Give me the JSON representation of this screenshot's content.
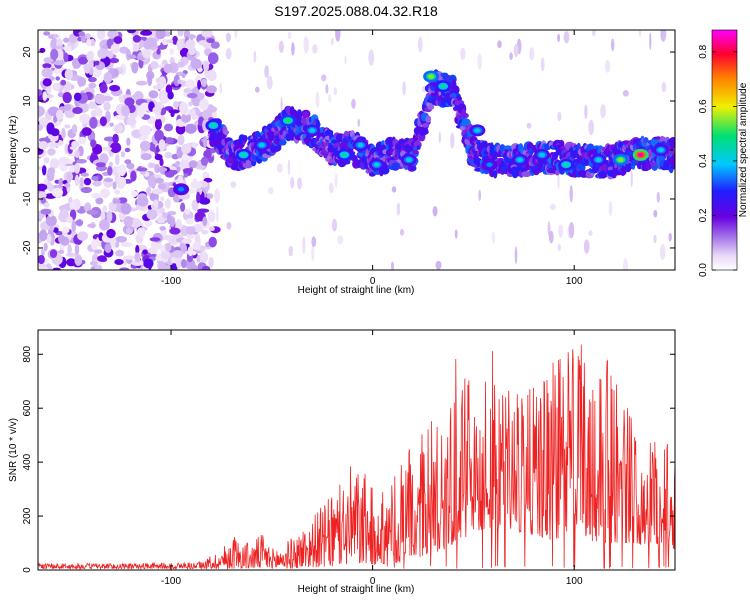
{
  "title": "S197.2025.088.04.32.R18",
  "colors": {
    "snr_line": "#ee2222",
    "colormap": [
      "#ffffff",
      "#e9d8f7",
      "#a070e8",
      "#6a00e0",
      "#2020ff",
      "#00c8ff",
      "#00e070",
      "#f0f000",
      "#ff8000",
      "#ff0030",
      "#ff00ff"
    ]
  },
  "chart_data": [
    {
      "type": "heatmap",
      "title": "",
      "xlabel": "Height of straight line (km)",
      "ylabel": "Frequency (Hz)",
      "xlim": [
        -166,
        150
      ],
      "ylim": [
        -24.5,
        24.5
      ],
      "xticks": [
        -100,
        0,
        100
      ],
      "xtick_labels": [
        "-100",
        "0",
        "100"
      ],
      "yticks": [
        -20,
        -10,
        0,
        10,
        20
      ],
      "ytick_labels": [
        "-20",
        "-10",
        "0",
        "10",
        "20"
      ],
      "colorbar": {
        "label": "Normalized spectral amplitude",
        "range": [
          0.0,
          0.88
        ],
        "ticks": [
          0.0,
          0.2,
          0.4,
          0.6,
          0.8
        ],
        "tick_labels": [
          "0.0",
          "0.2",
          "0.4",
          "0.6",
          "0.8"
        ]
      },
      "ridge": [
        {
          "x": -80,
          "y": 5
        },
        {
          "x": -70,
          "y": -1
        },
        {
          "x": -60,
          "y": 0
        },
        {
          "x": -50,
          "y": 2
        },
        {
          "x": -42,
          "y": 5.5
        },
        {
          "x": -30,
          "y": 4
        },
        {
          "x": -20,
          "y": 0
        },
        {
          "x": -10,
          "y": 0.5
        },
        {
          "x": 0,
          "y": -2
        },
        {
          "x": 10,
          "y": -1
        },
        {
          "x": 20,
          "y": -1
        },
        {
          "x": 30,
          "y": 13
        },
        {
          "x": 40,
          "y": 12
        },
        {
          "x": 50,
          "y": -1
        },
        {
          "x": 60,
          "y": -2
        },
        {
          "x": 70,
          "y": -2
        },
        {
          "x": 80,
          "y": -2
        },
        {
          "x": 90,
          "y": -1.5
        },
        {
          "x": 100,
          "y": -2
        },
        {
          "x": 110,
          "y": -2.5
        },
        {
          "x": 120,
          "y": -2
        },
        {
          "x": 130,
          "y": -1
        },
        {
          "x": 140,
          "y": -1
        },
        {
          "x": 150,
          "y": -1
        }
      ],
      "peaks": [
        {
          "x": -95,
          "y": -8,
          "z": 0.35
        },
        {
          "x": -79,
          "y": 5,
          "z": 0.45
        },
        {
          "x": -64,
          "y": -1,
          "z": 0.45
        },
        {
          "x": -55,
          "y": 1,
          "z": 0.4
        },
        {
          "x": -42,
          "y": 6,
          "z": 0.5
        },
        {
          "x": -30,
          "y": 4,
          "z": 0.4
        },
        {
          "x": -14,
          "y": -1,
          "z": 0.45
        },
        {
          "x": -6,
          "y": 1,
          "z": 0.4
        },
        {
          "x": 2,
          "y": -3,
          "z": 0.4
        },
        {
          "x": 18,
          "y": -2,
          "z": 0.4
        },
        {
          "x": 29,
          "y": 15,
          "z": 0.55
        },
        {
          "x": 35,
          "y": 13,
          "z": 0.45
        },
        {
          "x": 52,
          "y": 4,
          "z": 0.4
        },
        {
          "x": 58,
          "y": -3,
          "z": 0.35
        },
        {
          "x": 73,
          "y": -2,
          "z": 0.4
        },
        {
          "x": 84,
          "y": -1,
          "z": 0.4
        },
        {
          "x": 96,
          "y": -3,
          "z": 0.45
        },
        {
          "x": 112,
          "y": -2,
          "z": 0.4
        },
        {
          "x": 123,
          "y": -2,
          "z": 0.55
        },
        {
          "x": 133,
          "y": -1,
          "z": 0.85
        },
        {
          "x": 143,
          "y": 0,
          "z": 0.4
        }
      ]
    },
    {
      "type": "line",
      "title": "",
      "xlabel": "Height of straight line (km)",
      "ylabel": "SNR (10 * v/v)",
      "xlim": [
        -166,
        150
      ],
      "ylim": [
        0,
        890
      ],
      "xticks": [
        -100,
        0,
        100
      ],
      "xtick_labels": [
        "-100",
        "0",
        "100"
      ],
      "yticks": [
        0,
        200,
        400,
        600,
        800
      ],
      "ytick_labels": [
        "0",
        "200",
        "400",
        "600",
        "800"
      ],
      "series": [
        {
          "color": "#ee2222",
          "envelope_x": [
            -166,
            -120,
            -85,
            -75,
            -70,
            -60,
            -55,
            -50,
            -40,
            -30,
            -20,
            -10,
            0,
            10,
            20,
            30,
            40,
            50,
            60,
            70,
            80,
            90,
            100,
            110,
            120,
            130,
            140,
            150
          ],
          "envelope_max": [
            25,
            25,
            30,
            80,
            130,
            100,
            140,
            80,
            120,
            200,
            280,
            400,
            330,
            340,
            470,
            560,
            800,
            700,
            880,
            650,
            680,
            780,
            880,
            830,
            760,
            550,
            500,
            450
          ],
          "envelope_min": [
            5,
            5,
            5,
            5,
            5,
            5,
            5,
            5,
            5,
            10,
            10,
            20,
            20,
            20,
            40,
            60,
            90,
            140,
            150,
            140,
            130,
            100,
            160,
            100,
            100,
            100,
            80,
            80
          ]
        }
      ]
    }
  ]
}
